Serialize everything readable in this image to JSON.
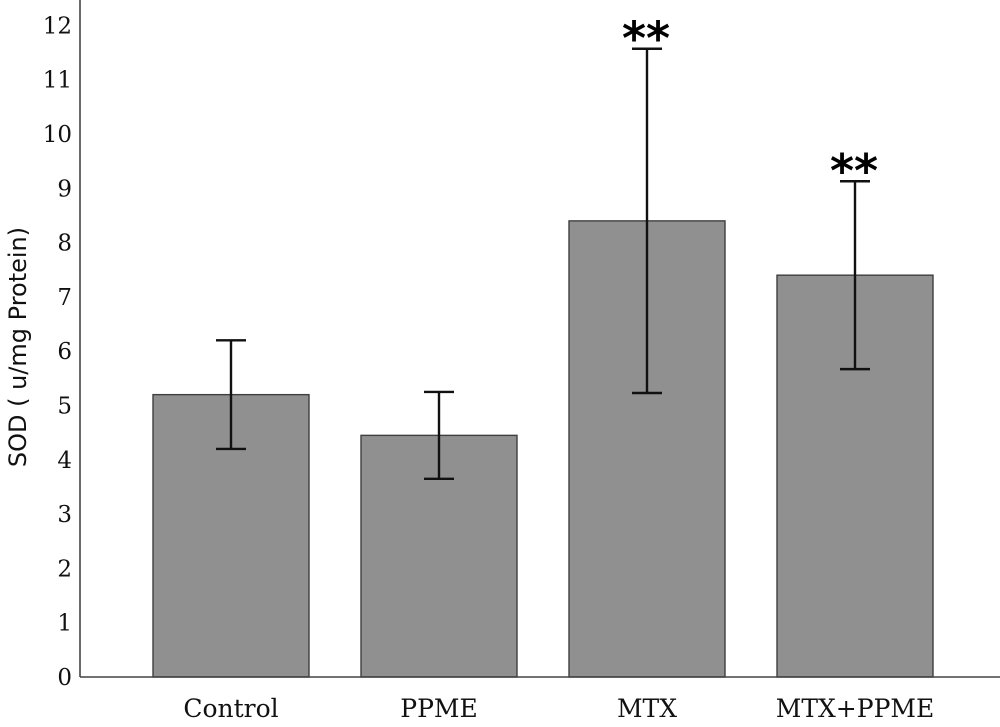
{
  "chart_data": {
    "type": "bar",
    "title": "",
    "xlabel": "",
    "ylabel": "SOD ( u/mg Protein)",
    "ylim": [
      0,
      12.5
    ],
    "yticks": [
      "0",
      "1",
      "2",
      "3",
      "4",
      "5",
      "6",
      "7",
      "8",
      "9",
      "10",
      "11",
      "12"
    ],
    "categories": [
      "Control",
      "PPME",
      "MTX",
      "MTX+PPME"
    ],
    "values": [
      5.2,
      4.45,
      8.4,
      7.4
    ],
    "error": [
      1.0,
      0.8,
      3.17,
      1.73
    ],
    "annotations": [
      "",
      "",
      "**",
      "**"
    ],
    "bar_color": "#909090",
    "grid": false,
    "legend": "none"
  }
}
